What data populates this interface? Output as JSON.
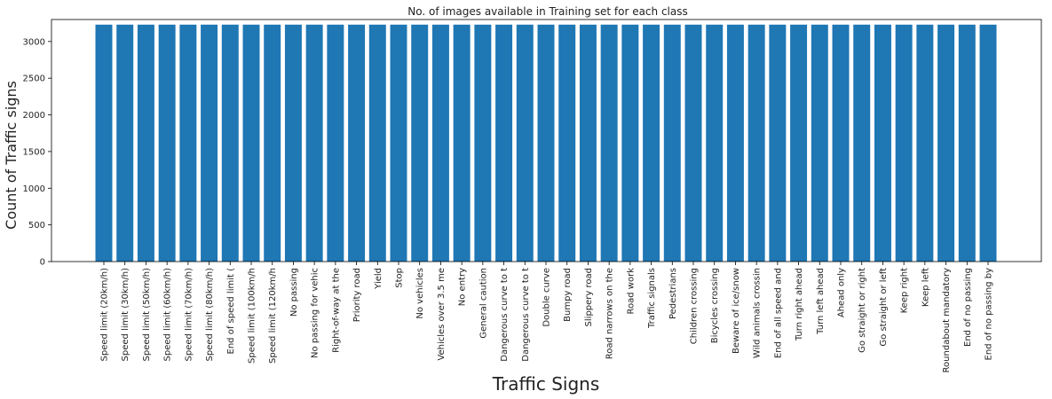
{
  "chart_data": {
    "type": "bar",
    "title": "No. of images available in Training set for each class",
    "xlabel": "Traffic Signs",
    "ylabel": "Count of Traffic signs",
    "ylim": [
      0,
      3300
    ],
    "yticks": [
      0,
      500,
      1000,
      1500,
      2000,
      2500,
      3000
    ],
    "grid": false,
    "bar_color": "#1f77b4",
    "categories": [
      "Speed limit (20km/h)",
      "Speed limit (30km/h)",
      "Speed limit (50km/h)",
      "Speed limit (60km/h)",
      "Speed limit (70km/h)",
      "Speed limit (80km/h)",
      "End of speed limit (",
      "Speed limit (100km/h",
      "Speed limit (120km/h",
      "No passing",
      "No passing for vehic",
      "Right-of-way at the",
      "Priority road",
      "Yield",
      "Stop",
      "No vehicles",
      "Vehicles over 3.5 me",
      "No entry",
      "General caution",
      "Dangerous curve to t",
      "Dangerous curve to t",
      "Double curve",
      "Bumpy road",
      "Slippery road",
      "Road narrows on the",
      "Road work",
      "Traffic signals",
      "Pedestrians",
      "Children crossing",
      "Bicycles crossing",
      "Beware of ice/snow",
      "Wild animals crossin",
      "End of all speed and",
      "Turn right ahead",
      "Turn left ahead",
      "Ahead only",
      "Go straight or right",
      "Go straight or left",
      "Keep right",
      "Keep left",
      "Roundabout mandatory",
      "End of no passing",
      "End of no passing by"
    ],
    "values": [
      3230,
      3230,
      3230,
      3230,
      3230,
      3230,
      3230,
      3230,
      3230,
      3230,
      3230,
      3230,
      3230,
      3230,
      3230,
      3230,
      3230,
      3230,
      3230,
      3230,
      3230,
      3230,
      3230,
      3230,
      3230,
      3230,
      3230,
      3230,
      3230,
      3230,
      3230,
      3230,
      3230,
      3230,
      3230,
      3230,
      3230,
      3230,
      3230,
      3230,
      3230,
      3230,
      3230
    ]
  }
}
